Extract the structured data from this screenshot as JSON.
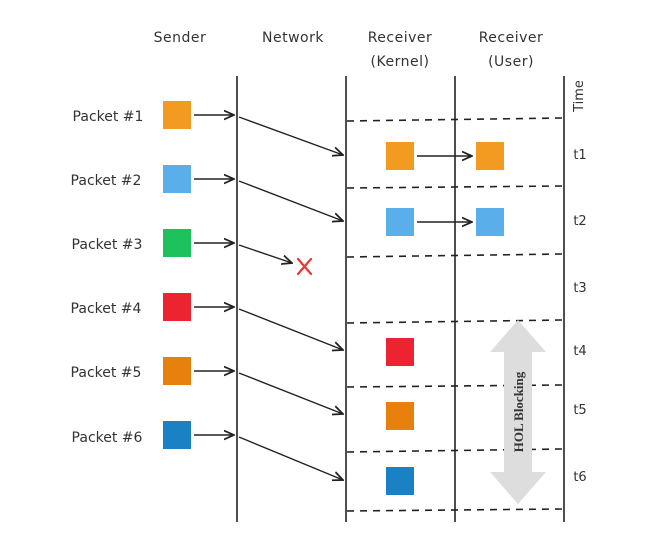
{
  "columns": {
    "sender": "Sender",
    "network": "Network",
    "receiver_kernel": [
      "Receiver",
      "(Kernel)"
    ],
    "receiver_user": [
      "Receiver",
      "(User)"
    ],
    "time": "Time"
  },
  "packets": [
    {
      "label": "Packet #1",
      "color": "#F29B20"
    },
    {
      "label": "Packet #2",
      "color": "#5AAFEA"
    },
    {
      "label": "Packet #3",
      "color": "#1EC25C"
    },
    {
      "label": "Packet #4",
      "color": "#EC2330"
    },
    {
      "label": "Packet #5",
      "color": "#E8800E"
    },
    {
      "label": "Packet #6",
      "color": "#1A82C4"
    }
  ],
  "time_ticks": [
    "t1",
    "t2",
    "t3",
    "t4",
    "t5",
    "t6"
  ],
  "hol_label": "HOL Blocking",
  "lost_marker": "X",
  "colors": {
    "line": "#222222",
    "lost": "#E53935",
    "hol_arrow": "#DDDDDD"
  }
}
